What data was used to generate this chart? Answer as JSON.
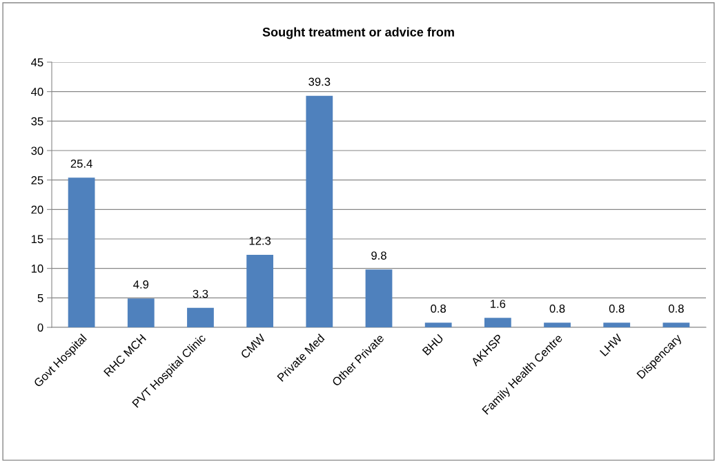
{
  "chart_data": {
    "type": "bar",
    "title": "Sought treatment or advice from",
    "categories": [
      "Govt Hospital",
      "RHC MCH",
      "PVT Hospital Clinic",
      "CMW",
      "Private Med",
      "Other Private",
      "BHU",
      "AKHSP",
      "Family Health Centre",
      "LHW",
      "Dispencary"
    ],
    "values": [
      25.4,
      4.9,
      3.3,
      12.3,
      39.3,
      9.8,
      0.8,
      1.6,
      0.8,
      0.8,
      0.8
    ],
    "color": "#4f81bd",
    "ylim": [
      0,
      45
    ],
    "yticks": [
      0,
      5,
      10,
      15,
      20,
      25,
      30,
      35,
      40,
      45
    ],
    "grid": "y",
    "data_labels": true,
    "legend": false
  }
}
